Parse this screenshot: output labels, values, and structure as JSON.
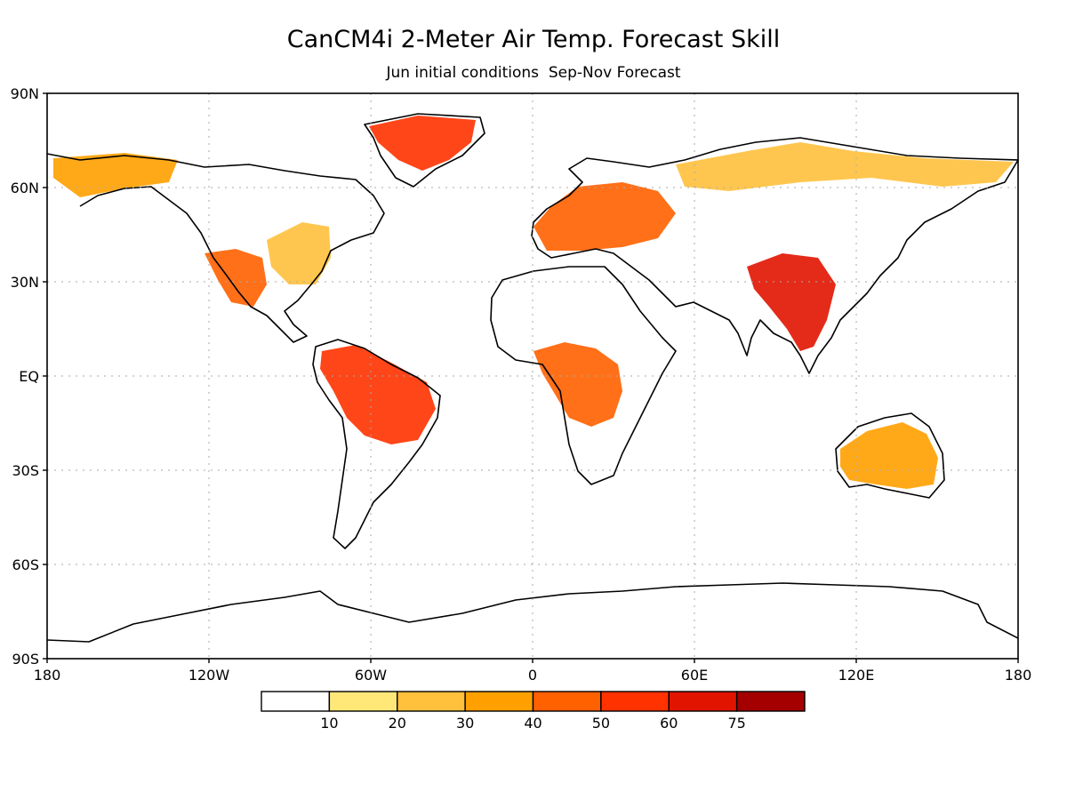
{
  "title": "CanCM4i 2-Meter Air Temp. Forecast Skill",
  "subtitle": "Jun initial conditions  Sep-Nov Forecast",
  "axes": {
    "lat_ticks": [
      "90N",
      "60N",
      "30N",
      "EQ",
      "30S",
      "60S",
      "90S"
    ],
    "lon_ticks": [
      "180",
      "120W",
      "60W",
      "0",
      "60E",
      "120E",
      "180"
    ]
  },
  "colorbar": {
    "labels": [
      "10",
      "20",
      "30",
      "40",
      "50",
      "60",
      "75"
    ],
    "colors": [
      "#ffffff",
      "#ffe878",
      "#ffc03c",
      "#ffa000",
      "#ff6000",
      "#ff3200",
      "#e11400",
      "#a50000"
    ]
  },
  "regions": [
    {
      "name": "western-us",
      "value": 40
    },
    {
      "name": "eastern-us",
      "value": 25
    },
    {
      "name": "alaska",
      "value": 30
    },
    {
      "name": "greenland",
      "value": 50
    },
    {
      "name": "europe",
      "value": 40
    },
    {
      "name": "siberia",
      "value": 25
    },
    {
      "name": "china-indochina",
      "value": 60
    },
    {
      "name": "amazon",
      "value": 50
    },
    {
      "name": "central-africa",
      "value": 45
    },
    {
      "name": "australia",
      "value": 35
    }
  ]
}
